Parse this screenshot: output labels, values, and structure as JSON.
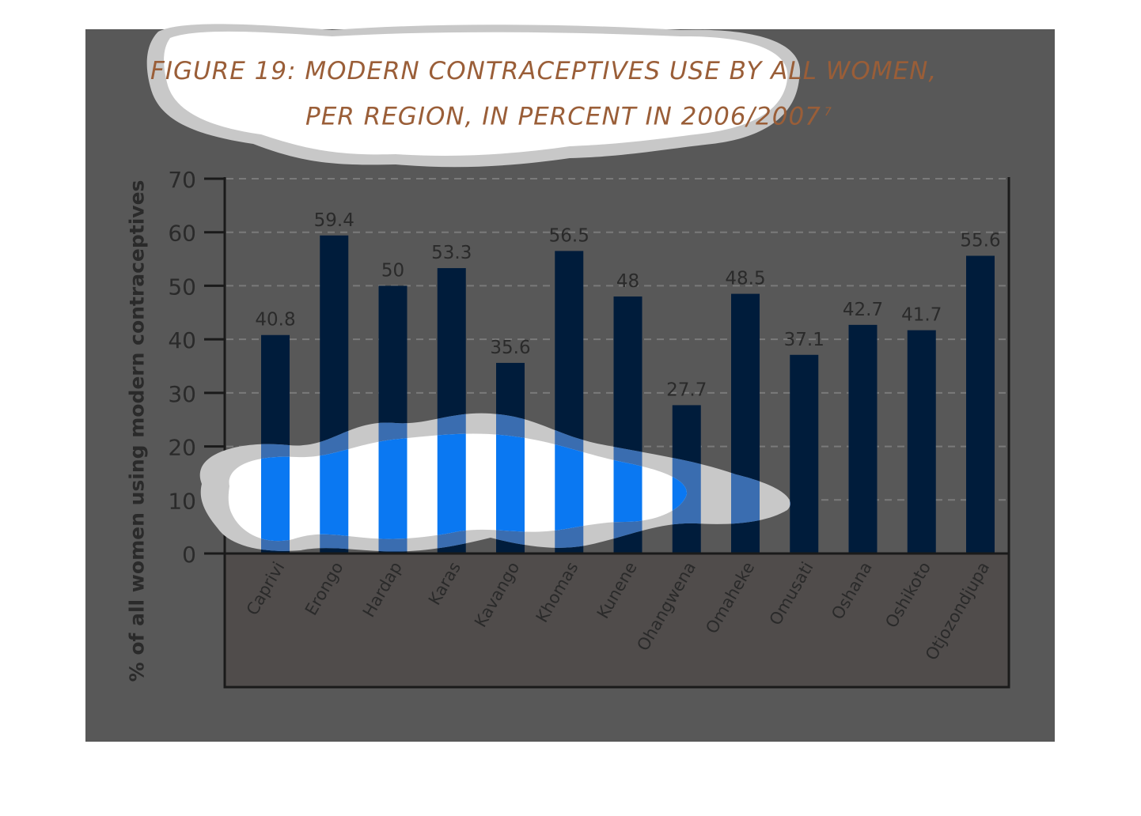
{
  "chart_data": {
    "type": "bar",
    "title_line1": "FIGURE 19: MODERN CONTRACEPTIVES USE BY ALL WOMEN,",
    "title_line2": "PER REGION, IN PERCENT IN 2006/2007",
    "title_footnote": "7",
    "ylabel": "% of all women using modern contraceptives",
    "xlabel": "",
    "ylim": [
      0,
      70
    ],
    "yticks": [
      "0",
      "10",
      "20",
      "30",
      "40",
      "50",
      "60",
      "70"
    ],
    "grid": true,
    "categories": [
      "Caprivi",
      "Erongo",
      "Hardap",
      "Karas",
      "Kavango",
      "Khomas",
      "Kunene",
      "Ohangwena",
      "Omaheke",
      "Omusati",
      "Oshana",
      "Oshikoto",
      "Otjozondjupa"
    ],
    "values": [
      40.8,
      59.4,
      50,
      53.3,
      35.6,
      56.5,
      48,
      27.7,
      48.5,
      37.1,
      42.7,
      41.7,
      55.6
    ],
    "value_labels": [
      "40.8",
      "59.4",
      "50",
      "53.3",
      "35.6",
      "56.5",
      "48",
      "27.7",
      "48.5",
      "37.1",
      "42.7",
      "41.7",
      "55.6"
    ],
    "colors": {
      "bar": "#001c3b",
      "bar_highlight": "#0a78f2",
      "background": "#585858",
      "label_area": "#504c4b",
      "title": "#9a5e38",
      "text": "#2a2a2a"
    }
  }
}
